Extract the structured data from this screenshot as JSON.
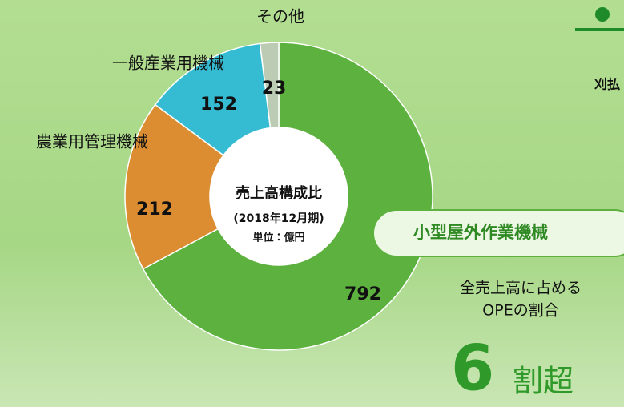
{
  "chart_data": {
    "type": "donut",
    "categories": [
      "小型屋外作業機械",
      "農業用管理機械",
      "一般産業用機械",
      "その他"
    ],
    "values": [
      792,
      212,
      152,
      23
    ],
    "colors": [
      "#5db13e",
      "#dc8d31",
      "#35bcd3",
      "#bccbb4"
    ],
    "center_text": [
      "売上高構成比",
      "(2018年12月期)",
      "単位：億円"
    ],
    "annotations": {
      "share_caption": [
        "全売上高に占める",
        "OPEの割合"
      ],
      "share_big": "6",
      "share_suffix": "割超",
      "side_heading": "刈払"
    }
  }
}
